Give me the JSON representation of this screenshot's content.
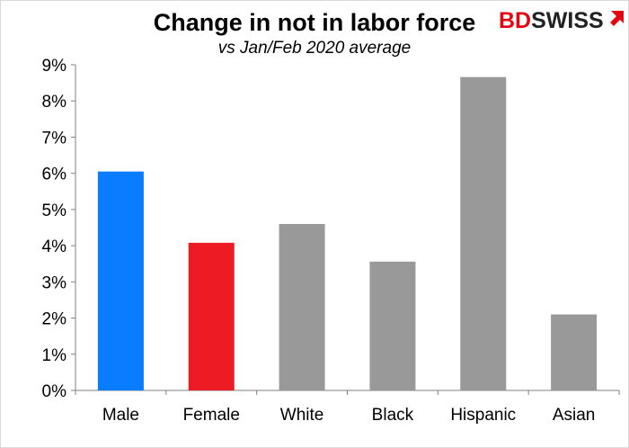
{
  "chart_data": {
    "type": "bar",
    "title": "Change in not in labor force",
    "subtitle": "vs Jan/Feb 2020 average",
    "categories": [
      "Male",
      "Female",
      "White",
      "Black",
      "Hispanic",
      "Asian"
    ],
    "values": [
      6.05,
      4.08,
      4.6,
      3.56,
      8.66,
      2.1
    ],
    "bar_colors": [
      "#0a7cff",
      "#ed1c24",
      "#999999",
      "#999999",
      "#999999",
      "#999999"
    ],
    "ylim": [
      0,
      9
    ],
    "yticks": [
      0,
      1,
      2,
      3,
      4,
      5,
      6,
      7,
      8,
      9
    ],
    "ytick_labels": [
      "0%",
      "1%",
      "2%",
      "3%",
      "4%",
      "5%",
      "6%",
      "7%",
      "8%",
      "9%"
    ],
    "grid": false,
    "xlabel": "",
    "ylabel": ""
  },
  "logo": {
    "text_part1": "BD",
    "text_part2": "SWISS",
    "color_part1": "#e30613",
    "color_part2": "#222222",
    "icon": "bdswiss-arrow-logo-icon"
  }
}
